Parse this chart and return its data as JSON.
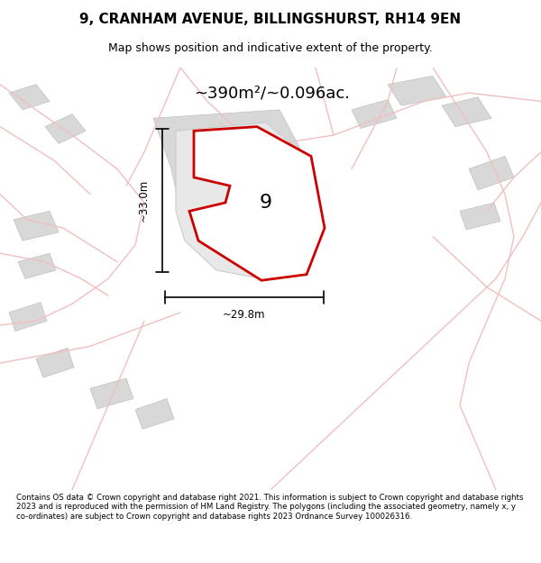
{
  "title": "9, CRANHAM AVENUE, BILLINGSHURST, RH14 9EN",
  "subtitle": "Map shows position and indicative extent of the property.",
  "area_label": "~390m²/~0.096ac.",
  "plot_number": "9",
  "dim_width": "~29.8m",
  "dim_height": "~33.0m",
  "footer": "Contains OS data © Crown copyright and database right 2021. This information is subject to Crown copyright and database rights 2023 and is reproduced with the permission of HM Land Registry. The polygons (including the associated geometry, namely x, y co-ordinates) are subject to Crown copyright and database rights 2023 Ordnance Survey 100026316.",
  "bg_color": "#ffffff",
  "map_bg": "#f5f5f5",
  "plot_fill": "#e8e8e8",
  "plot_edge": "#cc0000",
  "road_color": "#f0c0c0",
  "building_fill": "#d8d8d8",
  "building_edge": "#c0c0c0"
}
